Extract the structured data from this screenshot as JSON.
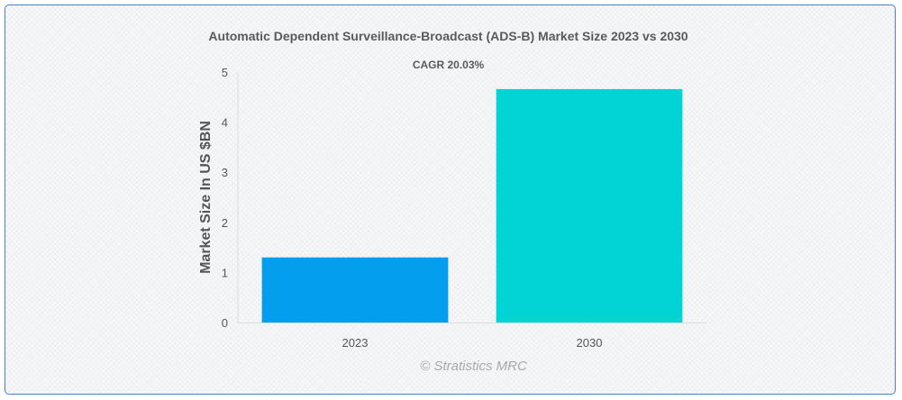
{
  "chart_data": {
    "type": "bar",
    "title": "Automatic Dependent Surveillance-Broadcast (ADS-B) Market Size 2023 vs 2030",
    "subtitle": "CAGR 20.03%",
    "categories": [
      "2023",
      "2030"
    ],
    "values": [
      1.3,
      4.66
    ],
    "colors": [
      "#039fee",
      "#02d4d6"
    ],
    "xlabel": "",
    "ylabel": "Market Size In US $BN",
    "ylim": [
      0,
      5
    ],
    "yticks": [
      "0",
      "1",
      "2",
      "3",
      "4",
      "5"
    ],
    "grid": false,
    "legend": "none"
  },
  "credit": "© Stratistics MRC"
}
